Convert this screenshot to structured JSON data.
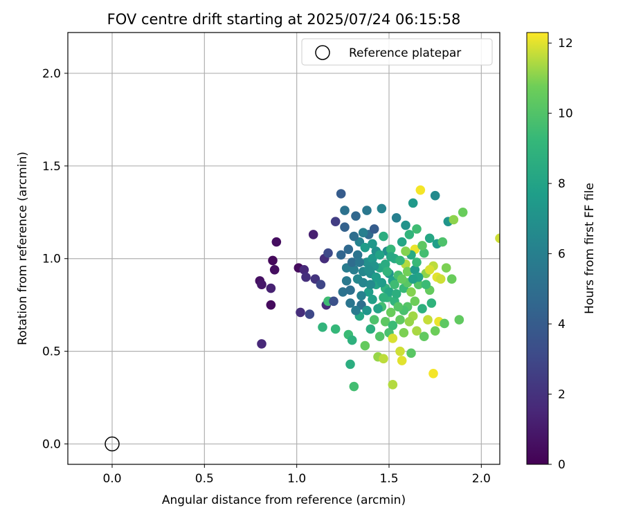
{
  "chart_data": {
    "type": "scatter",
    "title": "FOV centre drift starting at 2025/07/24 06:15:58",
    "xlabel": "Angular distance from reference (arcmin)",
    "ylabel": "Rotation from reference (arcmin)",
    "xlim": [
      -0.24,
      2.1
    ],
    "ylim": [
      -0.11,
      2.22
    ],
    "xticks": [
      0.0,
      0.5,
      1.0,
      1.5,
      2.0
    ],
    "yticks": [
      0.0,
      0.5,
      1.0,
      1.5,
      2.0
    ],
    "grid": true,
    "legend": {
      "placement": "top-right",
      "entries": [
        "Reference platepar"
      ]
    },
    "reference_point": {
      "name": "Reference platepar",
      "x": 0.0,
      "y": 0.0,
      "marker": "open-circle"
    },
    "colorbar": {
      "label": "Hours from first FF file",
      "colormap": "viridis",
      "range": [
        0,
        12.3
      ],
      "ticks": [
        0,
        2,
        4,
        6,
        8,
        10,
        12
      ]
    },
    "series": [
      {
        "points": [
          [
            0.81,
            0.54,
            1.6
          ],
          [
            0.86,
            0.75,
            0.4
          ],
          [
            0.8,
            0.88,
            0.6
          ],
          [
            0.81,
            0.86,
            0.9
          ],
          [
            0.86,
            0.84,
            1.3
          ],
          [
            0.87,
            0.99,
            0.3
          ],
          [
            0.88,
            0.94,
            0.5
          ],
          [
            0.89,
            1.09,
            0.5
          ],
          [
            1.01,
            0.95,
            0.4
          ],
          [
            1.02,
            0.71,
            1.8
          ],
          [
            1.04,
            0.94,
            1.6
          ],
          [
            1.05,
            0.9,
            1.9
          ],
          [
            1.07,
            0.7,
            3.0
          ],
          [
            1.09,
            1.13,
            1.2
          ],
          [
            1.1,
            0.89,
            2.1
          ],
          [
            1.13,
            0.86,
            2.9
          ],
          [
            1.15,
            1.0,
            1.8
          ],
          [
            1.16,
            0.75,
            1.7
          ],
          [
            1.17,
            1.03,
            3.1
          ],
          [
            1.17,
            0.77,
            9.5
          ],
          [
            1.2,
            0.77,
            3.4
          ],
          [
            1.21,
            1.2,
            2.5
          ],
          [
            1.21,
            0.62,
            9.2
          ],
          [
            1.14,
            0.63,
            9.0
          ],
          [
            1.24,
            1.35,
            4.0
          ],
          [
            1.26,
            1.17,
            4.3
          ],
          [
            1.26,
            1.26,
            5.2
          ],
          [
            1.24,
            1.02,
            4.5
          ],
          [
            1.25,
            0.82,
            5.2
          ],
          [
            1.27,
            0.88,
            5.6
          ],
          [
            1.28,
            0.59,
            9.4
          ],
          [
            1.29,
            0.43,
            8.6
          ],
          [
            1.31,
            0.31,
            9.6
          ],
          [
            1.3,
            0.56,
            8.8
          ],
          [
            1.27,
            0.95,
            5.8
          ],
          [
            1.29,
            0.76,
            5.4
          ],
          [
            1.32,
            1.23,
            4.6
          ],
          [
            1.31,
            0.94,
            5.9
          ],
          [
            1.33,
            0.89,
            6.5
          ],
          [
            1.34,
            1.09,
            6.2
          ],
          [
            1.34,
            0.69,
            8.2
          ],
          [
            1.35,
            0.75,
            5.0
          ],
          [
            1.36,
            0.87,
            6.3
          ],
          [
            1.37,
            1.06,
            7.6
          ],
          [
            1.37,
            0.53,
            10.5
          ],
          [
            1.38,
            0.98,
            6.9
          ],
          [
            1.38,
            1.26,
            5.5
          ],
          [
            1.39,
            0.82,
            7.7
          ],
          [
            1.39,
            1.13,
            4.8
          ],
          [
            1.4,
            0.62,
            8.7
          ],
          [
            1.4,
            0.92,
            6.7
          ],
          [
            1.41,
            1.0,
            7.4
          ],
          [
            1.41,
            0.78,
            7.8
          ],
          [
            1.42,
            1.16,
            4.0
          ],
          [
            1.42,
            0.67,
            9.9
          ],
          [
            1.43,
            0.86,
            8.1
          ],
          [
            1.43,
            1.04,
            7.0
          ],
          [
            1.44,
            0.47,
            11.2
          ],
          [
            1.45,
            0.58,
            10.0
          ],
          [
            1.45,
            0.95,
            8.3
          ],
          [
            1.46,
            1.27,
            6.2
          ],
          [
            1.46,
            0.74,
            9.6
          ],
          [
            1.47,
            0.46,
            11.6
          ],
          [
            1.47,
            1.12,
            8.6
          ],
          [
            1.48,
            0.84,
            8.8
          ],
          [
            1.48,
            0.66,
            10.3
          ],
          [
            1.49,
            1.04,
            6.8
          ],
          [
            1.49,
            0.79,
            9.1
          ],
          [
            1.5,
            0.92,
            7.3
          ],
          [
            1.5,
            0.6,
            9.8
          ],
          [
            1.51,
            0.71,
            10.6
          ],
          [
            1.51,
            1.05,
            9.2
          ],
          [
            1.52,
            0.88,
            7.9
          ],
          [
            1.52,
            0.57,
            11.9
          ],
          [
            1.52,
            0.32,
            11.5
          ],
          [
            1.53,
            1.0,
            8.4
          ],
          [
            1.53,
            0.77,
            9.0
          ],
          [
            1.54,
            1.22,
            6.0
          ],
          [
            1.55,
            0.91,
            9.7
          ],
          [
            1.56,
            0.67,
            10.4
          ],
          [
            1.56,
            0.5,
            11.8
          ],
          [
            1.57,
            0.45,
            12.0
          ],
          [
            1.57,
            1.09,
            8.1
          ],
          [
            1.58,
            0.84,
            9.3
          ],
          [
            1.58,
            0.6,
            10.9
          ],
          [
            1.59,
            1.18,
            7.1
          ],
          [
            1.59,
            0.97,
            11.5
          ],
          [
            1.6,
            0.74,
            10.1
          ],
          [
            1.6,
            0.93,
            10.8
          ],
          [
            1.61,
            1.13,
            9.0
          ],
          [
            1.62,
            0.82,
            11.0
          ],
          [
            1.62,
            0.49,
            10.2
          ],
          [
            1.63,
            1.3,
            7.4
          ],
          [
            1.63,
            0.69,
            11.3
          ],
          [
            1.64,
            1.05,
            12.1
          ],
          [
            1.64,
            0.94,
            7.5
          ],
          [
            1.65,
            0.61,
            11.4
          ],
          [
            1.65,
            1.16,
            9.5
          ],
          [
            1.66,
            0.86,
            10.0
          ],
          [
            1.67,
            1.37,
            12.2
          ],
          [
            1.68,
            0.73,
            8.8
          ],
          [
            1.69,
            0.58,
            10.4
          ],
          [
            1.69,
            1.03,
            9.6
          ],
          [
            1.7,
            0.92,
            11.1
          ],
          [
            1.71,
            0.67,
            11.7
          ],
          [
            1.72,
            1.11,
            8.2
          ],
          [
            1.72,
            0.83,
            10.5
          ],
          [
            1.73,
            0.76,
            8.9
          ],
          [
            1.74,
            0.38,
            12.2
          ],
          [
            1.74,
            0.96,
            11.6
          ],
          [
            1.75,
            1.34,
            6.6
          ],
          [
            1.75,
            0.61,
            10.7
          ],
          [
            1.76,
            1.08,
            7.7
          ],
          [
            1.76,
            0.9,
            12.0
          ],
          [
            1.77,
            0.66,
            12.1
          ],
          [
            1.78,
            0.89,
            11.8
          ],
          [
            1.79,
            1.09,
            9.9
          ],
          [
            1.8,
            0.65,
            10.3
          ],
          [
            1.81,
            0.95,
            10.9
          ],
          [
            1.82,
            1.2,
            7.2
          ],
          [
            1.84,
            0.89,
            10.6
          ],
          [
            1.85,
            1.21,
            11.1
          ],
          [
            1.88,
            0.67,
            10.4
          ],
          [
            1.9,
            1.25,
            10.6
          ],
          [
            2.1,
            1.11,
            11.8
          ],
          [
            1.29,
            0.83,
            5.1
          ],
          [
            1.3,
            0.98,
            4.9
          ],
          [
            1.32,
            0.72,
            5.7
          ],
          [
            1.33,
            1.02,
            5.3
          ],
          [
            1.35,
            0.8,
            6.1
          ],
          [
            1.36,
            0.93,
            6.4
          ],
          [
            1.38,
            0.72,
            7.2
          ],
          [
            1.4,
            0.86,
            6.6
          ],
          [
            1.42,
            0.96,
            7.1
          ],
          [
            1.44,
            0.73,
            8.0
          ],
          [
            1.46,
            0.87,
            7.5
          ],
          [
            1.48,
            0.97,
            8.5
          ],
          [
            1.5,
            0.82,
            8.2
          ],
          [
            1.52,
            0.64,
            9.4
          ],
          [
            1.54,
            0.81,
            8.7
          ],
          [
            1.56,
            0.99,
            9.1
          ],
          [
            1.58,
            0.72,
            9.8
          ],
          [
            1.6,
            0.87,
            10.2
          ],
          [
            1.62,
            1.02,
            8.4
          ],
          [
            1.64,
            0.77,
            10.7
          ],
          [
            1.66,
            0.9,
            8.0
          ],
          [
            1.68,
            1.07,
            10.3
          ],
          [
            1.7,
            0.86,
            9.4
          ],
          [
            1.72,
            0.94,
            11.9
          ],
          [
            1.28,
            1.05,
            4.7
          ],
          [
            1.31,
            1.12,
            5.0
          ],
          [
            1.34,
            0.98,
            5.5
          ],
          [
            1.36,
            1.14,
            6.0
          ],
          [
            1.39,
            0.94,
            6.8
          ],
          [
            1.41,
            1.08,
            7.3
          ],
          [
            1.43,
            0.9,
            7.6
          ],
          [
            1.45,
            1.02,
            8.0
          ],
          [
            1.47,
            0.79,
            8.9
          ],
          [
            1.49,
            0.93,
            9.0
          ],
          [
            1.51,
            1.01,
            8.3
          ],
          [
            1.53,
            0.86,
            9.5
          ],
          [
            1.55,
            0.74,
            10.1
          ],
          [
            1.57,
            0.89,
            10.5
          ],
          [
            1.59,
            1.04,
            11.0
          ],
          [
            1.61,
            0.66,
            11.2
          ],
          [
            1.63,
            0.89,
            7.8
          ],
          [
            1.65,
            0.98,
            9.3
          ]
        ]
      }
    ]
  }
}
